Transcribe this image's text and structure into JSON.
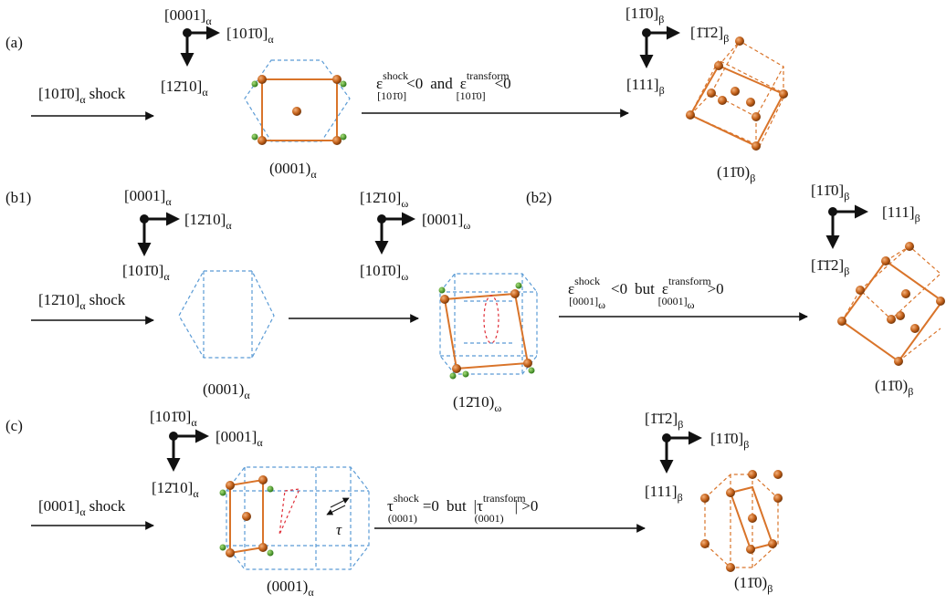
{
  "panels": {
    "a": {
      "label": "(a)",
      "axes": {
        "up": "[0001]",
        "up_sub": "α",
        "right": "[101̄0]",
        "right_sub": "α",
        "down": "[12̄10]",
        "down_sub": "α"
      },
      "shock": {
        "dir": "[101̄0]",
        "sub": "α",
        "word": "shock"
      },
      "crystal_label": {
        "plane": "(0001)",
        "sub": "α"
      },
      "condition": {
        "eps": "ε",
        "sup1": "shock",
        "sub1": "[101̄0]",
        "rel1": "<0",
        "conj": "and",
        "sup2": "transform",
        "sub2": "[101̄0]",
        "rel2": "<0"
      },
      "product_axes": {
        "up": "[11̄0]",
        "up_sub": "β",
        "right": "[1̄1̄2]",
        "right_sub": "β",
        "down": "[111]",
        "down_sub": "β"
      },
      "product_label": {
        "plane": "(11̄0)",
        "sub": "β"
      }
    },
    "b1": {
      "label": "(b1)",
      "axes": {
        "up": "[0001]",
        "up_sub": "α",
        "right": "[12̄10]",
        "right_sub": "α",
        "down": "[101̄0]",
        "down_sub": "α"
      },
      "shock": {
        "dir": "[12̄10]",
        "sub": "α",
        "word": "shock"
      },
      "crystal_label": {
        "plane": "(0001)",
        "sub": "α"
      },
      "omega_axes": {
        "up": "[12̄10]",
        "up_sub": "ω",
        "right": "[0001]",
        "right_sub": "ω",
        "down": "[101̄0]",
        "down_sub": "ω"
      },
      "omega_label": {
        "plane": "(12̄10)",
        "sub": "ω"
      }
    },
    "b2": {
      "label": "(b2)",
      "condition": {
        "eps": "ε",
        "sup1": "shock",
        "sub1": "[0001]",
        "sub1_sub": "ω",
        "rel1": "<0",
        "conj": "but",
        "sup2": "transform",
        "sub2": "[0001]",
        "sub2_sub": "ω",
        "rel2": ">0"
      },
      "product_axes": {
        "up": "[11̄0]",
        "up_sub": "β",
        "right": "[111]",
        "right_sub": "β",
        "down": "[1̄1̄2]",
        "down_sub": "β"
      },
      "product_label": {
        "plane": "(11̄0)",
        "sub": "β"
      }
    },
    "c": {
      "label": "(c)",
      "axes": {
        "up": "[101̄0]",
        "up_sub": "α",
        "right": "[0001]",
        "right_sub": "α",
        "down": "[12̄10]",
        "down_sub": "α"
      },
      "shock": {
        "dir": "[0001]",
        "sub": "α",
        "word": "shock"
      },
      "crystal_label": {
        "plane": "(0001)",
        "sub": "α"
      },
      "tau_symbol": "τ",
      "condition": {
        "tau": "τ",
        "sup1": "shock",
        "sub1": "(0001)",
        "rel1": "=0",
        "conj": "but",
        "bar": "|",
        "sup2": "transform",
        "sub2": "(0001)",
        "rel2": "| >0"
      },
      "product_axes": {
        "up": "[1̄1̄2]",
        "up_sub": "β",
        "right": "[11̄0]",
        "right_sub": "β",
        "down": "[111]",
        "down_sub": "β"
      },
      "product_label": {
        "plane": "(11̄0)",
        "sub": "β"
      }
    }
  },
  "colors": {
    "orange": "#d9742a",
    "ball": "#c4621b",
    "green": "#4a9a2b",
    "blue_dash": "#5b9bd5",
    "red_dash": "#e0303a",
    "black": "#111111"
  }
}
